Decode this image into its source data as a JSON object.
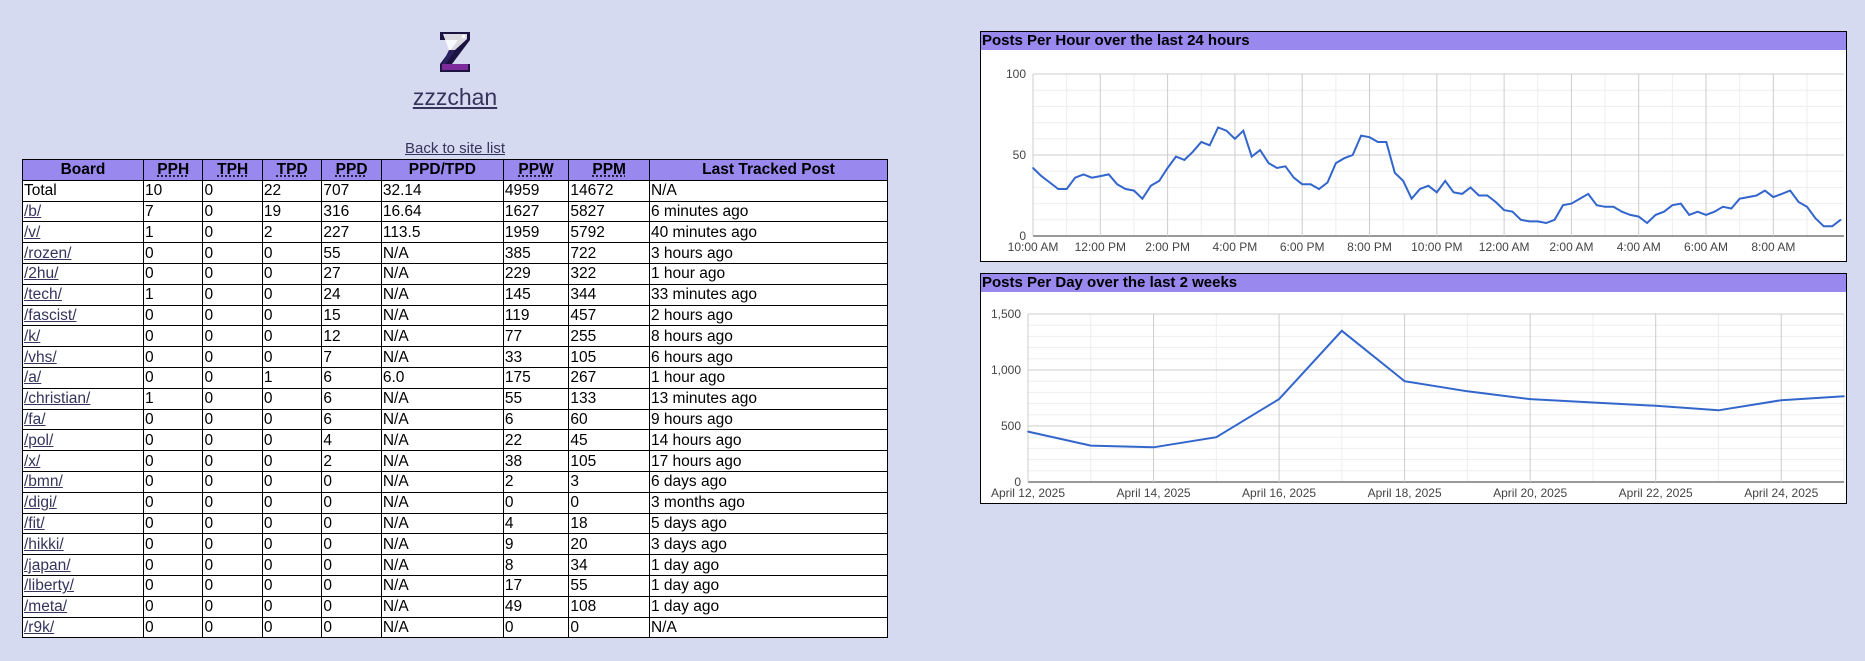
{
  "site": {
    "name": "zzzchan",
    "back_link": "Back to site list"
  },
  "table": {
    "headers": [
      "Board",
      "PPH",
      "TPH",
      "TPD",
      "PPD",
      "PPD/TPD",
      "PPW",
      "PPM",
      "Last Tracked Post"
    ],
    "rows": [
      [
        "Total",
        "10",
        "0",
        "22",
        "707",
        "32.14",
        "4959",
        "14672",
        "N/A"
      ],
      [
        "/b/",
        "7",
        "0",
        "19",
        "316",
        "16.64",
        "1627",
        "5827",
        "6 minutes ago"
      ],
      [
        "/v/",
        "1",
        "0",
        "2",
        "227",
        "113.5",
        "1959",
        "5792",
        "40 minutes ago"
      ],
      [
        "/rozen/",
        "0",
        "0",
        "0",
        "55",
        "N/A",
        "385",
        "722",
        "3 hours ago"
      ],
      [
        "/2hu/",
        "0",
        "0",
        "0",
        "27",
        "N/A",
        "229",
        "322",
        "1 hour ago"
      ],
      [
        "/tech/",
        "1",
        "0",
        "0",
        "24",
        "N/A",
        "145",
        "344",
        "33 minutes ago"
      ],
      [
        "/fascist/",
        "0",
        "0",
        "0",
        "15",
        "N/A",
        "119",
        "457",
        "2 hours ago"
      ],
      [
        "/k/",
        "0",
        "0",
        "0",
        "12",
        "N/A",
        "77",
        "255",
        "8 hours ago"
      ],
      [
        "/vhs/",
        "0",
        "0",
        "0",
        "7",
        "N/A",
        "33",
        "105",
        "6 hours ago"
      ],
      [
        "/a/",
        "0",
        "0",
        "1",
        "6",
        "6.0",
        "175",
        "267",
        "1 hour ago"
      ],
      [
        "/christian/",
        "1",
        "0",
        "0",
        "6",
        "N/A",
        "55",
        "133",
        "13 minutes ago"
      ],
      [
        "/fa/",
        "0",
        "0",
        "0",
        "6",
        "N/A",
        "6",
        "60",
        "9 hours ago"
      ],
      [
        "/pol/",
        "0",
        "0",
        "0",
        "4",
        "N/A",
        "22",
        "45",
        "14 hours ago"
      ],
      [
        "/x/",
        "0",
        "0",
        "0",
        "2",
        "N/A",
        "38",
        "105",
        "17 hours ago"
      ],
      [
        "/bmn/",
        "0",
        "0",
        "0",
        "0",
        "N/A",
        "2",
        "3",
        "6 days ago"
      ],
      [
        "/digi/",
        "0",
        "0",
        "0",
        "0",
        "N/A",
        "0",
        "0",
        "3 months ago"
      ],
      [
        "/fit/",
        "0",
        "0",
        "0",
        "0",
        "N/A",
        "4",
        "18",
        "5 days ago"
      ],
      [
        "/hikki/",
        "0",
        "0",
        "0",
        "0",
        "N/A",
        "9",
        "20",
        "3 days ago"
      ],
      [
        "/japan/",
        "0",
        "0",
        "0",
        "0",
        "N/A",
        "8",
        "34",
        "1 day ago"
      ],
      [
        "/liberty/",
        "0",
        "0",
        "0",
        "0",
        "N/A",
        "17",
        "55",
        "1 day ago"
      ],
      [
        "/meta/",
        "0",
        "0",
        "0",
        "0",
        "N/A",
        "49",
        "108",
        "1 day ago"
      ],
      [
        "/r9k/",
        "0",
        "0",
        "0",
        "0",
        "N/A",
        "0",
        "0",
        "N/A"
      ]
    ]
  },
  "colors": {
    "header_bg": "#9988ee",
    "page_bg": "#d6daf0",
    "line": "#3366cc",
    "link": "#34345c"
  },
  "chart_data": [
    {
      "type": "line",
      "title": "Posts Per Hour over the last 24 hours",
      "xlabel": "",
      "ylabel": "",
      "ylim": [
        0,
        100
      ],
      "y_ticks": [
        0,
        50,
        100
      ],
      "x_ticks": [
        "10:00 AM",
        "12:00 PM",
        "2:00 PM",
        "4:00 PM",
        "6:00 PM",
        "8:00 PM",
        "10:00 PM",
        "12:00 AM",
        "2:00 AM",
        "4:00 AM",
        "6:00 AM",
        "8:00 AM"
      ],
      "x_range_hours": [
        0,
        24.1
      ],
      "grid": true,
      "series": [
        {
          "x": [
            0,
            0.25,
            0.5,
            0.75,
            1,
            1.25,
            1.5,
            1.75,
            2,
            2.25,
            2.5,
            2.75,
            3,
            3.25,
            3.5,
            3.75,
            4,
            4.25,
            4.5,
            4.75,
            5,
            5.25,
            5.5,
            5.75,
            6,
            6.25,
            6.5,
            6.75,
            7,
            7.25,
            7.5,
            7.75,
            8,
            8.25,
            8.5,
            8.75,
            9,
            9.25,
            9.5,
            9.75,
            10,
            10.25,
            10.5,
            10.75,
            11,
            11.25,
            11.5,
            11.75,
            12,
            12.25,
            12.5,
            12.75,
            13,
            13.25,
            13.5,
            13.75,
            14,
            14.25,
            14.5,
            14.75,
            15,
            15.25,
            15.5,
            15.75,
            16,
            16.25,
            16.5,
            16.75,
            17,
            17.25,
            17.5,
            17.75,
            18,
            18.25,
            18.5,
            18.75,
            19,
            19.25,
            19.5,
            19.75,
            20,
            20.25,
            20.5,
            20.75,
            21,
            21.25,
            21.5,
            21.75,
            22,
            22.25,
            22.5,
            22.75,
            23,
            23.25,
            23.5,
            23.75,
            24
          ],
          "values": [
            42,
            37,
            33,
            29,
            29,
            36,
            38,
            36,
            37,
            38,
            32,
            29,
            28,
            23,
            31,
            34,
            42,
            49,
            47,
            52,
            58,
            56,
            67,
            65,
            60,
            65,
            49,
            53,
            45,
            42,
            43,
            36,
            32,
            32,
            29,
            33,
            45,
            48,
            50,
            62,
            61,
            58,
            58,
            39,
            34,
            23,
            29,
            31,
            27,
            34,
            27,
            26,
            30,
            25,
            25,
            21,
            16,
            15,
            10,
            9,
            9,
            8,
            10,
            19,
            20,
            23,
            26,
            19,
            18,
            18,
            15,
            13,
            12,
            8,
            13,
            15,
            19,
            20,
            13,
            15,
            13,
            15,
            18,
            17,
            23,
            24,
            25,
            28,
            24,
            26,
            28,
            21,
            18,
            11,
            6,
            6,
            10
          ]
        }
      ]
    },
    {
      "type": "line",
      "title": "Posts Per Day over the last 2 weeks",
      "xlabel": "",
      "ylabel": "",
      "ylim": [
        0,
        1500
      ],
      "y_ticks": [
        0,
        500,
        1000,
        1500
      ],
      "y_tick_labels": [
        "0",
        "500",
        "1,000",
        "1,500"
      ],
      "x_ticks": [
        "April 12, 2025",
        "April 14, 2025",
        "April 16, 2025",
        "April 18, 2025",
        "April 20, 2025",
        "April 22, 2025",
        "April 24, 2025"
      ],
      "grid": true,
      "series": [
        {
          "x": [
            "April 12, 2025",
            "April 13, 2025",
            "April 14, 2025",
            "April 15, 2025",
            "April 16, 2025",
            "April 17, 2025",
            "April 18, 2025",
            "April 19, 2025",
            "April 20, 2025",
            "April 21, 2025",
            "April 22, 2025",
            "April 23, 2025",
            "April 24, 2025",
            "April 25, 2025"
          ],
          "values": [
            450,
            325,
            310,
            400,
            740,
            1350,
            900,
            810,
            740,
            710,
            680,
            640,
            730,
            765
          ]
        }
      ]
    }
  ]
}
